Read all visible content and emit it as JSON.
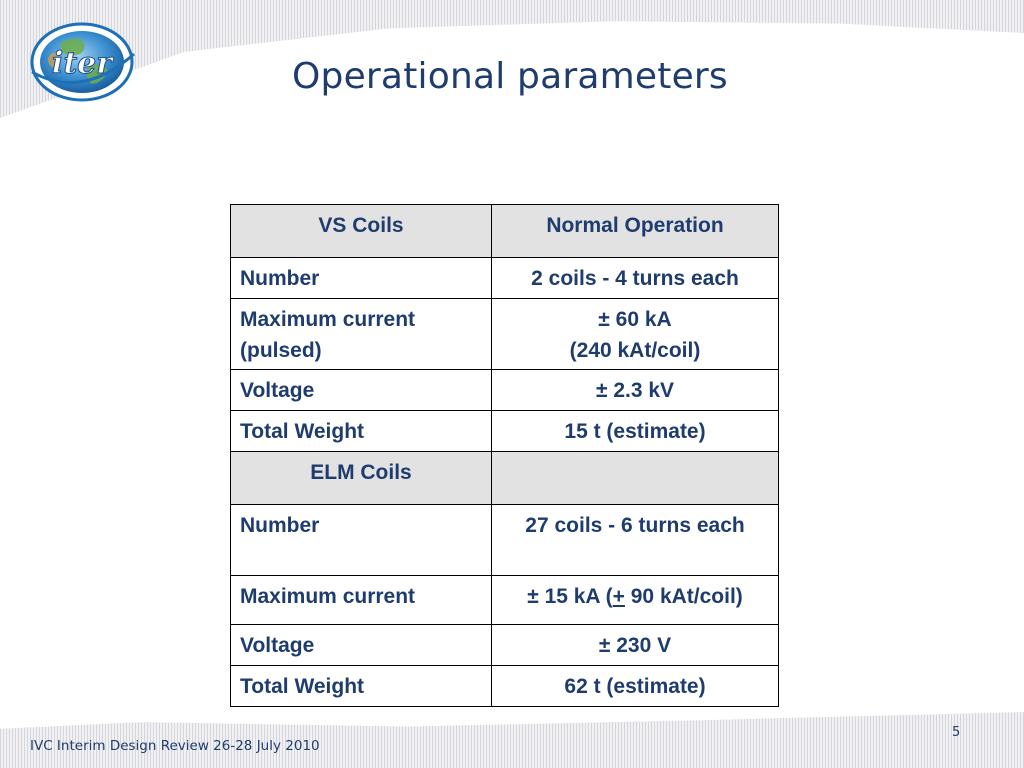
{
  "slide": {
    "title": "Operational parameters",
    "logo_text": "iter",
    "footer": "IVC Interim Design Review 26-28 July 2010",
    "page_number": "5"
  },
  "table": {
    "section_vs": {
      "header": [
        "VS Coils",
        "Normal Operation"
      ],
      "rows": [
        {
          "label": "Number",
          "value": "2 coils - 4 turns each"
        },
        {
          "label": "Maximum current (pulsed)",
          "value_line1": "± 60 kA",
          "value_line2": "(240 kAt/coil)"
        },
        {
          "label": "Voltage",
          "value": "± 2.3 kV"
        },
        {
          "label": "Total Weight",
          "value": "15 t (estimate)"
        }
      ]
    },
    "section_elm": {
      "header": [
        "ELM Coils",
        ""
      ],
      "rows": [
        {
          "label": "Number",
          "value": "27 coils - 6 turns each"
        },
        {
          "label": "Maximum current",
          "value_prefix": "± 15 kA (",
          "value_underlined": "+",
          "value_suffix": " 90 kAt/coil)"
        },
        {
          "label": "Voltage",
          "value": "± 230 V"
        },
        {
          "label": "Total Weight",
          "value": "62 t (estimate)"
        }
      ]
    }
  },
  "colors": {
    "text_primary": "#1f3c6e",
    "header_fill": "#e2e2e2",
    "band": "#f1f1f3",
    "logo_ring": "#1d6fb8"
  },
  "icons": {
    "logo": "iter-globe-logo"
  }
}
